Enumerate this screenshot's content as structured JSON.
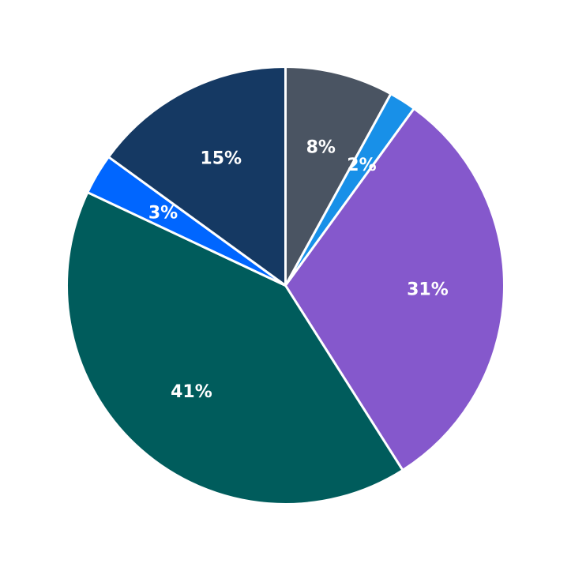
{
  "chart_data": {
    "type": "pie",
    "title": "",
    "start_angle": "top",
    "direction": "clockwise",
    "legend": "none",
    "slices": [
      {
        "value": 8,
        "label": "8%",
        "color": "#4a5462"
      },
      {
        "value": 2,
        "label": "2%",
        "color": "#1890e8"
      },
      {
        "value": 31,
        "label": "31%",
        "color": "#8558cc"
      },
      {
        "value": 41,
        "label": "41%",
        "color": "#005c5c"
      },
      {
        "value": 3,
        "label": "3%",
        "color": "#0066ff"
      },
      {
        "value": 15,
        "label": "15%",
        "color": "#153963"
      }
    ]
  }
}
